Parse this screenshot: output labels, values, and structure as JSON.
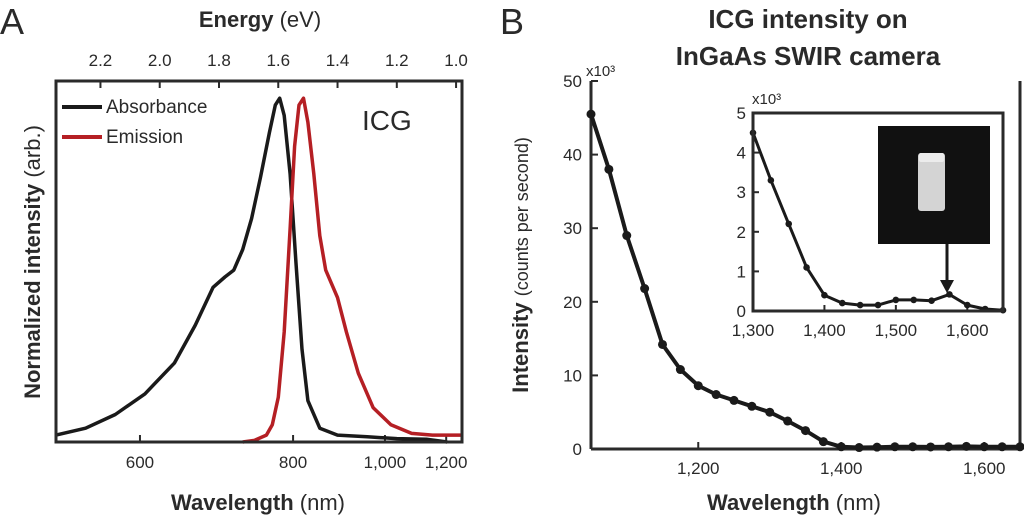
{
  "panel_a": {
    "letter": "A",
    "top_axis_label_bold": "Energy",
    "top_axis_label_unit": "(eV)",
    "bottom_axis_label_bold": "Wavelength",
    "bottom_axis_label_unit": "(nm)",
    "y_label_bold": "Normalized intensity",
    "y_label_unit": "(arb.)",
    "annotation": "ICG"
  },
  "panel_b": {
    "letter": "B",
    "title_line1": "ICG intensity on",
    "title_line2": "InGaAs SWIR camera",
    "y_label_bold": "Intensity",
    "y_label_unit": "(counts per second)",
    "x_label_bold": "Wavelength",
    "x_label_unit": "(nm)",
    "y_multiplier": "x10³",
    "inset_multiplier": "x10³"
  },
  "chart_data": [
    {
      "type": "line",
      "panel": "A",
      "xlabel": "Wavelength (nm)",
      "x2label": "Energy (eV)",
      "ylabel": "Normalized intensity (arb.)",
      "x_scale": "energy-linear (top axis in eV, bottom tick labels in nm)",
      "xlim_ev": [
        2.35,
        0.98
      ],
      "ylim": [
        0,
        1.05
      ],
      "top_ticks": [
        "2.2",
        "2.0",
        "1.8",
        "1.6",
        "1.4",
        "1.2",
        "1.0"
      ],
      "top_tick_values": [
        2.2,
        2.0,
        1.8,
        1.6,
        1.4,
        1.2,
        1.0
      ],
      "bottom_ticks": [
        "600",
        "800",
        "1,000",
        "1,200"
      ],
      "bottom_tick_values": [
        600,
        800,
        1000,
        1200
      ],
      "legend": [
        "Absorbance",
        "Emission"
      ],
      "legend_position": "top-left",
      "annotation": "ICG",
      "series": [
        {
          "name": "Absorbance",
          "color": "#1a1a1a",
          "x": [
            2.35,
            2.25,
            2.15,
            2.05,
            1.95,
            1.88,
            1.82,
            1.78,
            1.75,
            1.72,
            1.69,
            1.66,
            1.63,
            1.61,
            1.595,
            1.58,
            1.56,
            1.54,
            1.52,
            1.5,
            1.46,
            1.4,
            1.3,
            1.2,
            1.1,
            1.03
          ],
          "y": [
            0.02,
            0.04,
            0.08,
            0.14,
            0.23,
            0.34,
            0.45,
            0.48,
            0.5,
            0.56,
            0.65,
            0.77,
            0.9,
            0.98,
            1.0,
            0.95,
            0.78,
            0.52,
            0.27,
            0.12,
            0.04,
            0.02,
            0.015,
            0.01,
            0.008,
            0.0
          ]
        },
        {
          "name": "Emission",
          "color": "#b51f24",
          "x": [
            1.72,
            1.68,
            1.64,
            1.62,
            1.6,
            1.58,
            1.56,
            1.545,
            1.53,
            1.515,
            1.5,
            1.48,
            1.46,
            1.44,
            1.42,
            1.4,
            1.37,
            1.33,
            1.28,
            1.22,
            1.15,
            1.08,
            1.03,
            0.98
          ],
          "y": [
            0.0,
            0.005,
            0.02,
            0.05,
            0.13,
            0.32,
            0.62,
            0.86,
            0.98,
            1.0,
            0.93,
            0.78,
            0.6,
            0.5,
            0.46,
            0.42,
            0.32,
            0.2,
            0.1,
            0.05,
            0.025,
            0.02,
            0.02,
            0.02
          ]
        }
      ]
    },
    {
      "type": "line",
      "panel": "B",
      "title": "ICG intensity on InGaAs SWIR camera",
      "xlabel": "Wavelength (nm)",
      "ylabel": "Intensity (counts per second)",
      "y_multiplier": "x10³",
      "xlim": [
        1050,
        1650
      ],
      "ylim": [
        0,
        50
      ],
      "x_ticks": [
        "1,200",
        "1,400",
        "1,600"
      ],
      "x_tick_values": [
        1200,
        1400,
        1600
      ],
      "y_ticks": [
        "0",
        "10",
        "20",
        "30",
        "40",
        "50"
      ],
      "y_tick_values": [
        0,
        10,
        20,
        30,
        40,
        50
      ],
      "series": [
        {
          "color": "#1a1a1a",
          "marker": "circle",
          "x": [
            1050,
            1075,
            1100,
            1125,
            1150,
            1175,
            1200,
            1225,
            1250,
            1275,
            1300,
            1325,
            1350,
            1375,
            1400,
            1425,
            1450,
            1475,
            1500,
            1525,
            1550,
            1575,
            1600,
            1625,
            1650
          ],
          "y": [
            45.5,
            38.0,
            29.0,
            21.8,
            14.2,
            10.8,
            8.6,
            7.4,
            6.6,
            5.8,
            5.0,
            3.8,
            2.5,
            1.0,
            0.3,
            0.2,
            0.25,
            0.3,
            0.3,
            0.28,
            0.3,
            0.35,
            0.3,
            0.3,
            0.3
          ]
        }
      ]
    },
    {
      "type": "line",
      "panel": "B-inset",
      "y_multiplier": "x10³",
      "xlim": [
        1300,
        1650
      ],
      "ylim": [
        0,
        5
      ],
      "x_ticks": [
        "1,300",
        "1,400",
        "1,500",
        "1,600"
      ],
      "x_tick_values": [
        1300,
        1400,
        1500,
        1600
      ],
      "y_ticks": [
        "0",
        "1",
        "2",
        "3",
        "4",
        "5"
      ],
      "y_tick_values": [
        0,
        1,
        2,
        3,
        4,
        5
      ],
      "arrow_target_x": 1575,
      "series": [
        {
          "color": "#1a1a1a",
          "marker": "circle",
          "x": [
            1300,
            1325,
            1350,
            1375,
            1400,
            1425,
            1450,
            1475,
            1500,
            1525,
            1550,
            1575,
            1600,
            1625,
            1650
          ],
          "y": [
            4.5,
            3.3,
            2.2,
            1.1,
            0.4,
            0.2,
            0.15,
            0.15,
            0.28,
            0.28,
            0.26,
            0.42,
            0.15,
            0.05,
            0.02
          ]
        }
      ]
    }
  ]
}
